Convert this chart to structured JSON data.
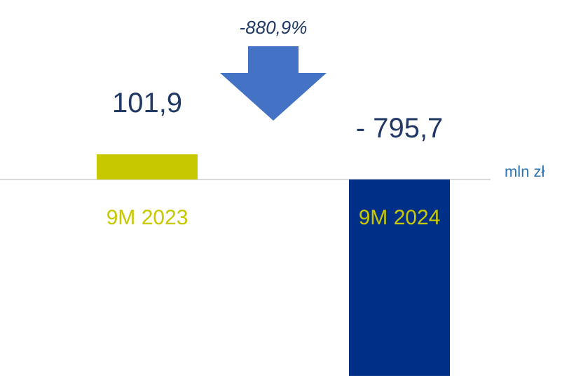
{
  "chart_data": {
    "type": "bar",
    "categories": [
      "9M 2023",
      "9M 2024"
    ],
    "values": [
      101.9,
      -795.7
    ],
    "colors": [
      "#c8c800",
      "#002f87"
    ],
    "value_labels": [
      "101,9",
      "- 795,7"
    ],
    "ylabel": "mln zł",
    "annotations": [
      "-880,9%"
    ]
  }
}
